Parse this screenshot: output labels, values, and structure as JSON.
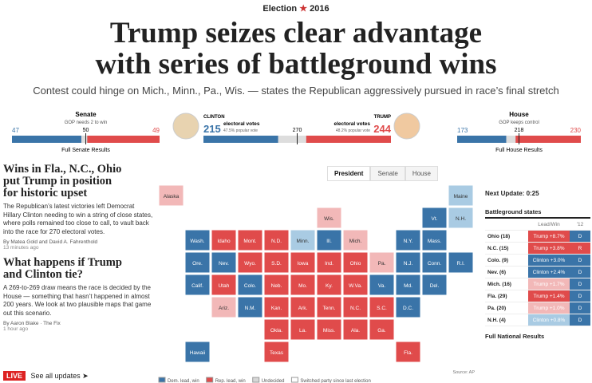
{
  "header": {
    "kicker": "Election",
    "year": "2016",
    "title": [
      "Trump seizes clear advantage",
      "with series of battleground wins"
    ],
    "subtitle": "Contest could hinge on Mich., Minn., Pa., Wis. — states the Republican aggressively pursued in race’s final stretch"
  },
  "senate": {
    "label": "Senate",
    "note": "GOP needs 2 to win",
    "dem": 47,
    "mid": 50,
    "rep": 49,
    "link": "Full Senate Results"
  },
  "president": {
    "dem_name": "CLINTON",
    "dem_ev": 215,
    "dem_ev_label": "electoral votes",
    "dem_popular": "47.5% popular vote",
    "mid": 270,
    "rep_name": "TRUMP",
    "rep_ev": 244,
    "rep_ev_label": "electoral votes",
    "rep_popular": "48.2% popular vote"
  },
  "house": {
    "label": "House",
    "note": "GOP keeps control",
    "dem": 173,
    "mid": 218,
    "rep": 230,
    "link": "Full House Results"
  },
  "tabs": [
    "President",
    "Senate",
    "House"
  ],
  "articles": [
    {
      "headline": [
        "Wins in Fla., N.C., Ohio",
        "put Trump in position",
        "for historic upset"
      ],
      "body": "The Republican’s latest victories left Democrat Hillary Clinton needing to win a string of close states, where polls remained too close to call, to vault back into the race for 270 electoral votes.",
      "byline": "By Matea Gold and David A. Fahrenthold",
      "time": "13 minutes ago"
    },
    {
      "headline": [
        "What happens if Trump",
        "and Clinton tie?"
      ],
      "body": "A 269-to-269 draw means the race is decided by the House — something that hasn’t happened in almost 200 years. We look at two plausible maps that game out this scenario.",
      "byline": "By Aaron Blake · The Fix",
      "time": "1 hour ago"
    }
  ],
  "map": {
    "source": "Source: AP",
    "states": [
      {
        "label": "Alaska",
        "color": "#f2b8b8"
      },
      {
        "label": "Maine",
        "color": "#a9cbe3"
      },
      {
        "label": "Wis.",
        "color": "#f2b8b8"
      },
      {
        "label": "Vt.",
        "color": "#3a74a8"
      },
      {
        "label": "N.H.",
        "color": "#a9cbe3"
      },
      {
        "label": "Wash.",
        "color": "#3a74a8"
      },
      {
        "label": "Idaho",
        "color": "#e04b4b"
      },
      {
        "label": "Mont.",
        "color": "#e04b4b"
      },
      {
        "label": "N.D.",
        "color": "#e04b4b"
      },
      {
        "label": "Minn.",
        "color": "#a9cbe3"
      },
      {
        "label": "Ill.",
        "color": "#3a74a8"
      },
      {
        "label": "Mich.",
        "color": "#f2b8b8"
      },
      {
        "label": "N.Y.",
        "color": "#3a74a8"
      },
      {
        "label": "Mass.",
        "color": "#3a74a8"
      },
      {
        "label": "Ore.",
        "color": "#3a74a8"
      },
      {
        "label": "Nev.",
        "color": "#3a74a8"
      },
      {
        "label": "Wyo.",
        "color": "#e04b4b"
      },
      {
        "label": "S.D.",
        "color": "#e04b4b"
      },
      {
        "label": "Iowa",
        "color": "#e04b4b"
      },
      {
        "label": "Ind.",
        "color": "#e04b4b"
      },
      {
        "label": "Ohio",
        "color": "#e04b4b"
      },
      {
        "label": "Pa.",
        "color": "#f2b8b8"
      },
      {
        "label": "N.J.",
        "color": "#3a74a8"
      },
      {
        "label": "Conn.",
        "color": "#3a74a8"
      },
      {
        "label": "R.I.",
        "color": "#3a74a8"
      },
      {
        "label": "Calif.",
        "color": "#3a74a8"
      },
      {
        "label": "Utah",
        "color": "#e04b4b"
      },
      {
        "label": "Colo.",
        "color": "#3a74a8"
      },
      {
        "label": "Neb.",
        "color": "#e04b4b"
      },
      {
        "label": "Mo.",
        "color": "#e04b4b"
      },
      {
        "label": "Ky.",
        "color": "#e04b4b"
      },
      {
        "label": "W.Va.",
        "color": "#e04b4b"
      },
      {
        "label": "Va.",
        "color": "#3a74a8"
      },
      {
        "label": "Md.",
        "color": "#3a74a8"
      },
      {
        "label": "Del.",
        "color": "#3a74a8"
      },
      {
        "label": "Ariz.",
        "color": "#f2b8b8"
      },
      {
        "label": "N.M.",
        "color": "#3a74a8"
      },
      {
        "label": "Kan.",
        "color": "#e04b4b"
      },
      {
        "label": "Ark.",
        "color": "#e04b4b"
      },
      {
        "label": "Tenn.",
        "color": "#e04b4b"
      },
      {
        "label": "N.C.",
        "color": "#e04b4b"
      },
      {
        "label": "S.C.",
        "color": "#e04b4b"
      },
      {
        "label": "D.C.",
        "color": "#3a74a8"
      },
      {
        "label": "Okla.",
        "color": "#e04b4b"
      },
      {
        "label": "La.",
        "color": "#e04b4b"
      },
      {
        "label": "Miss.",
        "color": "#e04b4b"
      },
      {
        "label": "Ala.",
        "color": "#e04b4b"
      },
      {
        "label": "Ga.",
        "color": "#e04b4b"
      },
      {
        "label": "Hawaii",
        "color": "#3a74a8"
      },
      {
        "label": "Texas",
        "color": "#e04b4b"
      },
      {
        "label": "Fla.",
        "color": "#e04b4b"
      }
    ],
    "legend": [
      {
        "label": "Dem. lead, win",
        "color": "#3a74a8"
      },
      {
        "label": "Rep. lead, win",
        "color": "#e04b4b"
      },
      {
        "label": "Undecided",
        "color": "#d7d7d7"
      },
      {
        "label": "Switched party since last election",
        "color": "#ffffff"
      }
    ]
  },
  "sidebar": {
    "next_update": "Next Update: 0:25",
    "table_title": "Battleground states",
    "headers": [
      "Lead/Win",
      "'12"
    ],
    "rows": [
      {
        "state": "Ohio (18)",
        "lead": "Trump +8.7%",
        "lead_color": "#e04b4b",
        "prev": "D",
        "prev_color": "#3a74a8"
      },
      {
        "state": "N.C. (15)",
        "lead": "Trump +3.8%",
        "lead_color": "#e04b4b",
        "prev": "R",
        "prev_color": "#e04b4b"
      },
      {
        "state": "Colo. (9)",
        "lead": "Clinton +3.0%",
        "lead_color": "#3a74a8",
        "prev": "D",
        "prev_color": "#3a74a8"
      },
      {
        "state": "Nev. (6)",
        "lead": "Clinton +2.4%",
        "lead_color": "#3a74a8",
        "prev": "D",
        "prev_color": "#3a74a8"
      },
      {
        "state": "Mich. (16)",
        "lead": "Trump +1.7%",
        "lead_color": "#f2b8b8",
        "prev": "D",
        "prev_color": "#3a74a8"
      },
      {
        "state": "Fla. (29)",
        "lead": "Trump +1.4%",
        "lead_color": "#e04b4b",
        "prev": "D",
        "prev_color": "#3a74a8"
      },
      {
        "state": "Pa. (20)",
        "lead": "Trump +1.0%",
        "lead_color": "#f2b8b8",
        "prev": "D",
        "prev_color": "#3a74a8"
      },
      {
        "state": "N.H. (4)",
        "lead": "Clinton +0.8%",
        "lead_color": "#a9cbe3",
        "prev": "D",
        "prev_color": "#3a74a8"
      }
    ],
    "link": "Full National Results"
  },
  "live": {
    "badge": "LIVE",
    "link": "See all updates"
  }
}
